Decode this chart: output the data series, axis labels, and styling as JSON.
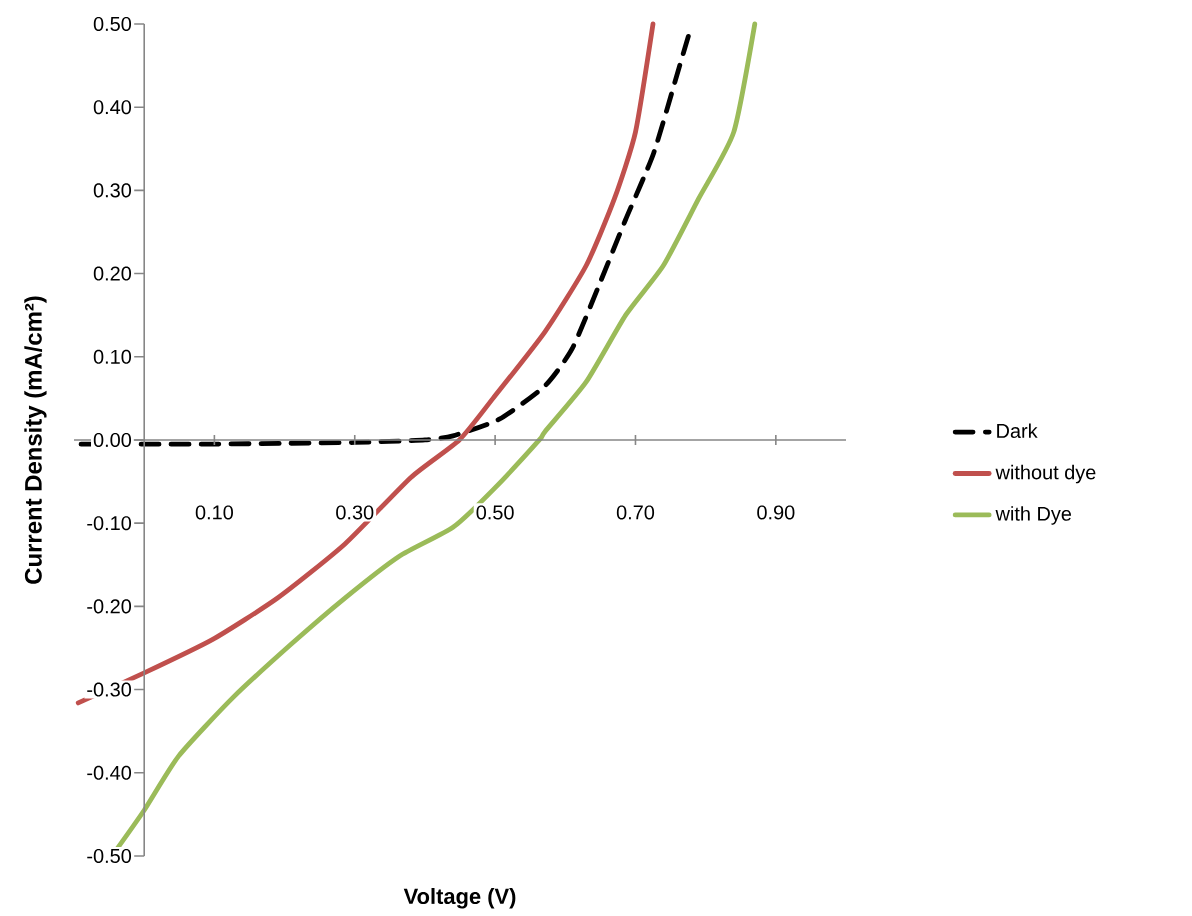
{
  "chart_data": {
    "type": "line",
    "xlabel": "Voltage (V)",
    "ylabel": "Current Density (mA/cm²)",
    "xlim": [
      -0.1,
      1.0
    ],
    "ylim": [
      -0.5,
      0.5
    ],
    "xticks": [
      {
        "value": 0.1,
        "label": "0.10"
      },
      {
        "value": 0.3,
        "label": "0.30"
      },
      {
        "value": 0.5,
        "label": "0.50"
      },
      {
        "value": 0.7,
        "label": "0.70"
      },
      {
        "value": 0.9,
        "label": "0.90"
      }
    ],
    "yticks": [
      {
        "value": -0.5,
        "label": "-0.50"
      },
      {
        "value": -0.4,
        "label": "-0.40"
      },
      {
        "value": -0.3,
        "label": "-0.30"
      },
      {
        "value": -0.2,
        "label": "-0.20"
      },
      {
        "value": -0.1,
        "label": "-0.10"
      },
      {
        "value": 0.0,
        "label": "0.00"
      },
      {
        "value": 0.1,
        "label": "0.10"
      },
      {
        "value": 0.2,
        "label": "0.20"
      },
      {
        "value": 0.3,
        "label": "0.30"
      },
      {
        "value": 0.4,
        "label": "0.40"
      },
      {
        "value": 0.5,
        "label": "0.50"
      }
    ],
    "legend": "right",
    "series": [
      {
        "name": "Dark",
        "color": "#000000",
        "line_style": "dashed",
        "x": [
          -0.09,
          0.0,
          0.1,
          0.2,
          0.3,
          0.4,
          0.44,
          0.506,
          0.571,
          0.61,
          0.65,
          0.686,
          0.726,
          0.763,
          0.777
        ],
        "values": [
          -0.005,
          -0.005,
          -0.005,
          -0.004,
          -0.003,
          0.0,
          0.005,
          0.025,
          0.065,
          0.11,
          0.19,
          0.265,
          0.345,
          0.45,
          0.49
        ]
      },
      {
        "name": "without dye",
        "color": "#c0504d",
        "line_style": "solid",
        "x": [
          -0.094,
          0.0,
          0.097,
          0.19,
          0.286,
          0.38,
          0.449,
          0.497,
          0.571,
          0.63,
          0.67,
          0.7,
          0.725
        ],
        "values": [
          -0.316,
          -0.28,
          -0.24,
          -0.19,
          -0.125,
          -0.045,
          0.0,
          0.05,
          0.13,
          0.21,
          0.29,
          0.37,
          0.5
        ]
      },
      {
        "name": "with Dye",
        "color": "#9bbb59",
        "line_style": "solid",
        "x": [
          -0.046,
          0.0,
          0.049,
          0.126,
          0.21,
          0.286,
          0.363,
          0.44,
          0.497,
          0.563,
          0.571,
          0.63,
          0.686,
          0.74,
          0.79,
          0.84,
          0.87
        ],
        "values": [
          -0.5,
          -0.445,
          -0.38,
          -0.31,
          -0.245,
          -0.19,
          -0.14,
          -0.105,
          -0.06,
          0.0,
          0.01,
          0.07,
          0.15,
          0.21,
          0.29,
          0.37,
          0.5
        ]
      }
    ]
  }
}
